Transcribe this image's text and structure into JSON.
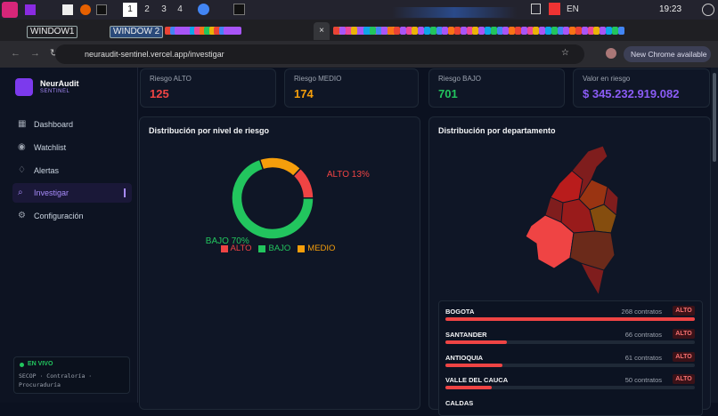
{
  "taskbar": {
    "workspaces": [
      "1",
      "2",
      "3",
      "4"
    ],
    "language": "EN",
    "clock": "19:23"
  },
  "browser": {
    "tabs": [
      "WINDOW1",
      "WINDOW 2"
    ],
    "url": "neuraudit-sentinel.vercel.app/investigar",
    "update": "New Chrome available"
  },
  "sidebar": {
    "brand": "NeurAudit",
    "subtitle": "SENTINEL",
    "nav": [
      "Dashboard",
      "Watchlist",
      "Alertas",
      "Investigar",
      "Configuración"
    ],
    "status": "EN VIVO",
    "sources": "SECOP · Contraloría · Procuraduría"
  },
  "cards": [
    {
      "label": "Riesgo ALTO",
      "value": 125,
      "color": "#ef4444"
    },
    {
      "label": "Riesgo MEDIO",
      "value": 174,
      "color": "#f59e0b"
    },
    {
      "label": "Riesgo BAJO",
      "value": 701,
      "color": "#22c55e"
    },
    {
      "label": "Valor en riesgo",
      "value": "$ 345.232.919.082",
      "color": "#8b5cf6"
    }
  ],
  "risk_chart": {
    "type": "donut",
    "title": "Distribución por nivel de riesgo",
    "categories": [
      "ALTO",
      "BAJO",
      "MEDIO"
    ],
    "values": [
      13,
      70,
      17
    ],
    "value_labels": [
      "ALTO 13%",
      "BAJO 70%",
      null
    ],
    "colors": [
      "#ef4444",
      "#22c55e",
      "#f59e0b"
    ]
  },
  "department_chart": {
    "title": "Distribución por departamento",
    "departments": [
      {
        "name": "BOGOTA",
        "contracts": 268,
        "contracts_label": "268 contratos",
        "risk": "ALTO"
      },
      {
        "name": "SANTANDER",
        "contracts": 66,
        "contracts_label": "66 contratos",
        "risk": "ALTO"
      },
      {
        "name": "ANTIOQUIA",
        "contracts": 61,
        "contracts_label": "61 contratos",
        "risk": "ALTO"
      },
      {
        "name": "VALLE DEL CAUCA",
        "contracts": 50,
        "contracts_label": "50 contratos",
        "risk": "ALTO"
      },
      {
        "name": "CALDAS"
      }
    ]
  }
}
